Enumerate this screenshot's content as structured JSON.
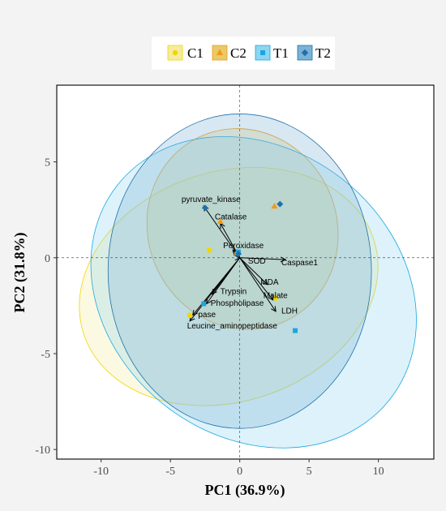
{
  "chart_data": {
    "type": "scatter",
    "subtype": "PCA biplot",
    "xlabel": "PC1 (36.9%)",
    "ylabel": "PC2 (31.8%)",
    "xlim": [
      -13.2,
      14
    ],
    "ylim": [
      -10.5,
      9
    ],
    "xticks": [
      -10,
      -5,
      0,
      5,
      10
    ],
    "yticks": [
      -10,
      -5,
      0,
      5
    ],
    "xtick_labels": [
      "-10",
      "-5",
      "0",
      "5",
      "10"
    ],
    "ytick_labels": [
      "-10",
      "-5",
      "0",
      "5"
    ],
    "grid": false,
    "reference_lines": {
      "x": 0,
      "y": 0,
      "style": "dashed"
    },
    "legend": {
      "position": "top"
    },
    "groups": [
      {
        "name": "C1",
        "marker": "circle",
        "color": "#f2d600",
        "fill": "#f5ec9e",
        "points": [
          [
            -2.2,
            0.4
          ],
          [
            -3.6,
            -3.0
          ],
          [
            2.6,
            -2.1
          ]
        ],
        "ellipse": {
          "center": [
            -0.8,
            -1.5
          ],
          "rx": 11.0,
          "ry": 6.0,
          "angle_deg": 18
        }
      },
      {
        "name": "C2",
        "marker": "triangle",
        "color": "#f29a12",
        "fill": "#e9c96a",
        "points": [
          [
            -1.4,
            1.9
          ],
          [
            2.5,
            2.7
          ],
          [
            -0.2,
            0.3
          ]
        ],
        "ellipse": {
          "center": [
            0.2,
            1.5
          ],
          "rx": 6.8,
          "ry": 5.3,
          "angle_deg": 25
        }
      },
      {
        "name": "T1",
        "marker": "square",
        "color": "#1aa7e0",
        "fill": "#8fd5f0",
        "points": [
          [
            -2.6,
            -2.4
          ],
          [
            -0.1,
            0.3
          ],
          [
            4.0,
            -3.8
          ]
        ],
        "ellipse": {
          "center": [
            1.0,
            -1.8
          ],
          "rx": 12.5,
          "ry": 7.5,
          "angle_deg": -38
        }
      },
      {
        "name": "T2",
        "marker": "diamond",
        "color": "#1f70a8",
        "fill": "#7ab3d6",
        "points": [
          [
            -2.5,
            2.6
          ],
          [
            -0.1,
            0.2
          ],
          [
            2.9,
            2.8
          ]
        ],
        "ellipse": {
          "center": [
            0.0,
            -0.7
          ],
          "rx": 9.5,
          "ry": 8.2,
          "angle_deg": 0
        }
      }
    ],
    "loadings": [
      {
        "name": "pyruvate_kinase",
        "x": -2.6,
        "y": 2.7
      },
      {
        "name": "Catalase",
        "x": -1.4,
        "y": 1.8
      },
      {
        "name": "Peroxidase",
        "x": -0.5,
        "y": 0.4
      },
      {
        "name": "SOD",
        "x": 0.0,
        "y": 0.0
      },
      {
        "name": "Caspase1",
        "x": 3.3,
        "y": -0.1
      },
      {
        "name": "MDA",
        "x": 2.0,
        "y": -1.4
      },
      {
        "name": "Malate",
        "x": 2.4,
        "y": -2.2
      },
      {
        "name": "LDH",
        "x": 2.6,
        "y": -2.8
      },
      {
        "name": "Trypsin",
        "x": -2.0,
        "y": -1.9
      },
      {
        "name": "Phospholipase",
        "x": -2.4,
        "y": -2.4
      },
      {
        "name": "Lipase",
        "x": -3.4,
        "y": -3.0
      },
      {
        "name": "Leucine_aminopeptidase",
        "x": -3.6,
        "y": -3.3
      }
    ],
    "loading_labels": [
      {
        "text": "pyruvate_kinase",
        "x": -4.2,
        "y": 2.9
      },
      {
        "text": "Catalase",
        "x": -1.8,
        "y": 2.0
      },
      {
        "text": "Peroxidase",
        "x": -1.2,
        "y": 0.5
      },
      {
        "text": "SOD",
        "x": 0.6,
        "y": -0.3
      },
      {
        "text": "Caspase1",
        "x": 3.0,
        "y": -0.4
      },
      {
        "text": "MDA",
        "x": 1.5,
        "y": -1.4
      },
      {
        "text": "Malate",
        "x": 1.7,
        "y": -2.1
      },
      {
        "text": "LDH",
        "x": 3.0,
        "y": -2.9
      },
      {
        "text": "Trypsin",
        "x": -1.4,
        "y": -1.9
      },
      {
        "text": "Phospholipase",
        "x": -2.1,
        "y": -2.5
      },
      {
        "text": "pase",
        "x": -3.0,
        "y": -3.1
      },
      {
        "text": "Leucine_aminopeptidase",
        "x": -3.8,
        "y": -3.7
      }
    ]
  }
}
